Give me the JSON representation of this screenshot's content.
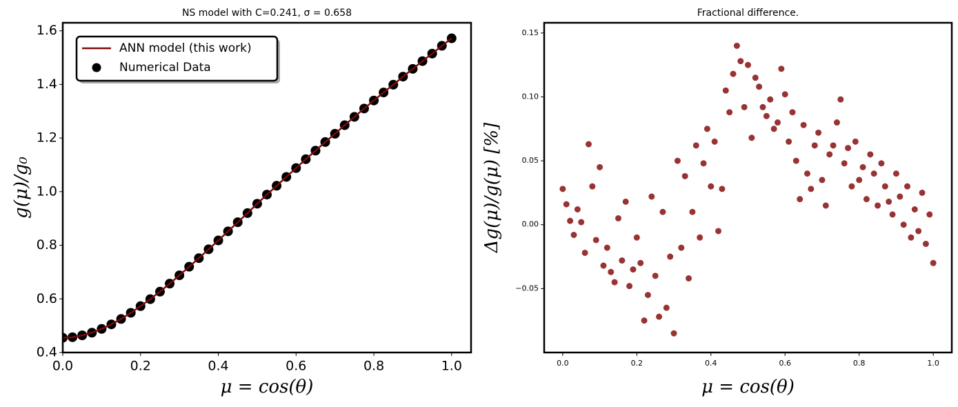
{
  "chart_data": [
    {
      "type": "line",
      "title": "NS model with C=0.241, σ = 0.658",
      "xlabel": "μ = cos(θ)",
      "ylabel": "g(μ)/g₀",
      "x": [
        0,
        0.025,
        0.05,
        0.075,
        0.1,
        0.125,
        0.15,
        0.175,
        0.2,
        0.225,
        0.25,
        0.275,
        0.3,
        0.325,
        0.35,
        0.375,
        0.4,
        0.425,
        0.45,
        0.475,
        0.5,
        0.525,
        0.55,
        0.575,
        0.6,
        0.625,
        0.65,
        0.675,
        0.7,
        0.725,
        0.75,
        0.775,
        0.8,
        0.825,
        0.85,
        0.875,
        0.9,
        0.925,
        0.95,
        0.975,
        1.0
      ],
      "series": [
        {
          "name": "ANN model (this work)",
          "color": "#7b0a0a",
          "style": "line",
          "values": [
            0.455,
            0.457,
            0.464,
            0.474,
            0.488,
            0.505,
            0.525,
            0.548,
            0.573,
            0.599,
            0.627,
            0.657,
            0.688,
            0.72,
            0.752,
            0.785,
            0.818,
            0.852,
            0.886,
            0.92,
            0.955,
            0.989,
            1.022,
            1.055,
            1.088,
            1.121,
            1.153,
            1.185,
            1.216,
            1.248,
            1.279,
            1.31,
            1.34,
            1.37,
            1.399,
            1.429,
            1.458,
            1.487,
            1.515,
            1.544,
            1.572
          ]
        },
        {
          "name": "Numerical Data",
          "color": "#000000",
          "style": "scatter",
          "values": [
            0.455,
            0.457,
            0.464,
            0.474,
            0.488,
            0.505,
            0.525,
            0.548,
            0.573,
            0.599,
            0.627,
            0.657,
            0.688,
            0.72,
            0.752,
            0.785,
            0.818,
            0.852,
            0.886,
            0.92,
            0.955,
            0.989,
            1.022,
            1.055,
            1.088,
            1.121,
            1.153,
            1.185,
            1.216,
            1.248,
            1.279,
            1.31,
            1.34,
            1.37,
            1.399,
            1.429,
            1.458,
            1.487,
            1.515,
            1.544,
            1.572
          ]
        }
      ],
      "xlim": [
        0,
        1.05
      ],
      "xticks": [
        {
          "value": 0,
          "label": "0.0"
        },
        0.2,
        0.4,
        0.6,
        0.8,
        {
          "value": 1,
          "label": "1.0"
        }
      ],
      "ylim": [
        0.4,
        1.63
      ],
      "yticks": [
        0.4,
        0.6,
        0.8,
        {
          "value": 1,
          "label": "1.0"
        },
        1.2,
        1.4,
        1.6
      ],
      "legend": "upper left"
    },
    {
      "type": "scatter",
      "title": "Fractional difference.",
      "xlabel": "μ = cos(θ)",
      "ylabel": "Δg(μ)/g(μ)  [%]",
      "color": "#800000",
      "x": [
        0,
        0.01,
        0.02,
        0.03,
        0.04,
        0.05,
        0.06,
        0.07,
        0.08,
        0.09,
        0.1,
        0.11,
        0.12,
        0.13,
        0.14,
        0.15,
        0.16,
        0.17,
        0.18,
        0.19,
        0.2,
        0.21,
        0.22,
        0.23,
        0.24,
        0.25,
        0.26,
        0.27,
        0.28,
        0.29,
        0.3,
        0.31,
        0.32,
        0.33,
        0.34,
        0.35,
        0.36,
        0.37,
        0.38,
        0.39,
        0.4,
        0.41,
        0.42,
        0.43,
        0.44,
        0.45,
        0.46,
        0.47,
        0.48,
        0.49,
        0.5,
        0.51,
        0.52,
        0.53,
        0.54,
        0.55,
        0.56,
        0.57,
        0.58,
        0.59,
        0.6,
        0.61,
        0.62,
        0.63,
        0.64,
        0.65,
        0.66,
        0.67,
        0.68,
        0.69,
        0.7,
        0.71,
        0.72,
        0.73,
        0.74,
        0.75,
        0.76,
        0.77,
        0.78,
        0.79,
        0.8,
        0.81,
        0.82,
        0.83,
        0.84,
        0.85,
        0.86,
        0.87,
        0.88,
        0.89,
        0.9,
        0.91,
        0.92,
        0.93,
        0.94,
        0.95,
        0.96,
        0.97,
        0.98,
        0.99,
        1.0
      ],
      "values": [
        0.028,
        0.016,
        0.003,
        -0.008,
        0.012,
        0.002,
        -0.022,
        0.063,
        0.03,
        -0.012,
        0.045,
        -0.032,
        -0.018,
        -0.037,
        -0.045,
        0.005,
        -0.028,
        0.018,
        -0.048,
        -0.035,
        -0.01,
        -0.03,
        -0.075,
        -0.055,
        0.022,
        -0.04,
        -0.072,
        0.01,
        -0.065,
        -0.025,
        -0.085,
        0.05,
        -0.018,
        0.038,
        -0.042,
        0.01,
        0.062,
        -0.01,
        0.048,
        0.075,
        0.03,
        0.065,
        -0.005,
        0.028,
        0.105,
        0.088,
        0.118,
        0.14,
        0.128,
        0.092,
        0.125,
        0.068,
        0.115,
        0.108,
        0.092,
        0.085,
        0.098,
        0.075,
        0.08,
        0.122,
        0.102,
        0.065,
        0.088,
        0.05,
        0.02,
        0.078,
        0.04,
        0.028,
        0.062,
        0.072,
        0.035,
        0.015,
        0.055,
        0.062,
        0.08,
        0.098,
        0.048,
        0.06,
        0.03,
        0.065,
        0.035,
        0.045,
        0.02,
        0.055,
        0.04,
        0.015,
        0.048,
        0.03,
        0.018,
        0.008,
        0.04,
        0.022,
        0,
        0.03,
        -0.01,
        0.012,
        -0.005,
        0.025,
        -0.015,
        0.008,
        -0.03
      ],
      "xlim": [
        -0.05,
        1.05
      ],
      "xticks": [
        {
          "value": 0,
          "label": "0.0"
        },
        0.2,
        0.4,
        0.6,
        0.8,
        {
          "value": 1,
          "label": "1.0"
        }
      ],
      "ylim": [
        -0.1,
        0.158
      ],
      "yticks": [
        {
          "value": -0.05,
          "label": "−0.05"
        },
        {
          "value": 0,
          "label": "0.00"
        },
        0.05,
        {
          "value": 0.1,
          "label": "0.10"
        },
        0.15
      ]
    }
  ]
}
